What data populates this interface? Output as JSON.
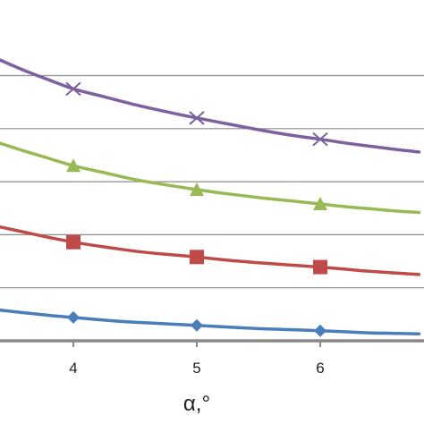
{
  "chart_data": {
    "type": "line",
    "title": "",
    "xlabel": "α,°",
    "ylabel": "",
    "xlim": [
      3.4,
      6.8
    ],
    "ylim": [
      0,
      5.35
    ],
    "x_ticks": [
      4,
      5,
      6
    ],
    "y_gridlines": [
      1,
      2,
      3,
      4,
      5
    ],
    "grid": true,
    "legend": "none",
    "series": [
      {
        "marker": "diamond",
        "color": "#4a7ebb",
        "x": [
          4,
          5,
          6
        ],
        "y": [
          0.44,
          0.29,
          0.19
        ],
        "curve": [
          [
            3.4,
            0.58
          ],
          [
            3.6,
            0.53
          ],
          [
            3.8,
            0.48
          ],
          [
            4.0,
            0.44
          ],
          [
            4.25,
            0.39
          ],
          [
            4.5,
            0.35
          ],
          [
            4.75,
            0.32
          ],
          [
            5.0,
            0.29
          ],
          [
            5.25,
            0.26
          ],
          [
            5.5,
            0.23
          ],
          [
            5.75,
            0.21
          ],
          [
            6.0,
            0.19
          ],
          [
            6.2,
            0.17
          ],
          [
            6.4,
            0.15
          ],
          [
            6.6,
            0.14
          ],
          [
            6.8,
            0.13
          ]
        ]
      },
      {
        "marker": "square",
        "color": "#be4b48",
        "x": [
          4,
          5,
          6
        ],
        "y": [
          1.86,
          1.58,
          1.39
        ],
        "curve": [
          [
            3.4,
            2.15
          ],
          [
            3.6,
            2.05
          ],
          [
            3.8,
            1.95
          ],
          [
            4.0,
            1.86
          ],
          [
            4.25,
            1.77
          ],
          [
            4.5,
            1.69
          ],
          [
            4.75,
            1.63
          ],
          [
            5.0,
            1.58
          ],
          [
            5.25,
            1.52
          ],
          [
            5.5,
            1.47
          ],
          [
            5.75,
            1.43
          ],
          [
            6.0,
            1.39
          ],
          [
            6.2,
            1.35
          ],
          [
            6.4,
            1.31
          ],
          [
            6.6,
            1.28
          ],
          [
            6.8,
            1.25
          ]
        ]
      },
      {
        "marker": "triangle",
        "color": "#98b954",
        "x": [
          4,
          5,
          6
        ],
        "y": [
          3.3,
          2.85,
          2.58
        ],
        "curve": [
          [
            3.4,
            3.73
          ],
          [
            3.6,
            3.58
          ],
          [
            3.8,
            3.44
          ],
          [
            4.0,
            3.3
          ],
          [
            4.25,
            3.17
          ],
          [
            4.5,
            3.04
          ],
          [
            4.75,
            2.94
          ],
          [
            5.0,
            2.85
          ],
          [
            5.25,
            2.77
          ],
          [
            5.5,
            2.7
          ],
          [
            5.75,
            2.64
          ],
          [
            6.0,
            2.58
          ],
          [
            6.2,
            2.53
          ],
          [
            6.4,
            2.49
          ],
          [
            6.6,
            2.45
          ],
          [
            6.8,
            2.42
          ]
        ]
      },
      {
        "marker": "x",
        "color": "#7d60a0",
        "x": [
          4,
          5,
          6
        ],
        "y": [
          4.75,
          4.2,
          3.8
        ],
        "curve": [
          [
            3.4,
            5.3
          ],
          [
            3.6,
            5.1
          ],
          [
            3.8,
            4.92
          ],
          [
            4.0,
            4.75
          ],
          [
            4.25,
            4.6
          ],
          [
            4.5,
            4.45
          ],
          [
            4.75,
            4.32
          ],
          [
            5.0,
            4.2
          ],
          [
            5.25,
            4.09
          ],
          [
            5.5,
            3.98
          ],
          [
            5.75,
            3.88
          ],
          [
            6.0,
            3.8
          ],
          [
            6.2,
            3.73
          ],
          [
            6.4,
            3.67
          ],
          [
            6.6,
            3.61
          ],
          [
            6.8,
            3.56
          ]
        ]
      }
    ]
  }
}
